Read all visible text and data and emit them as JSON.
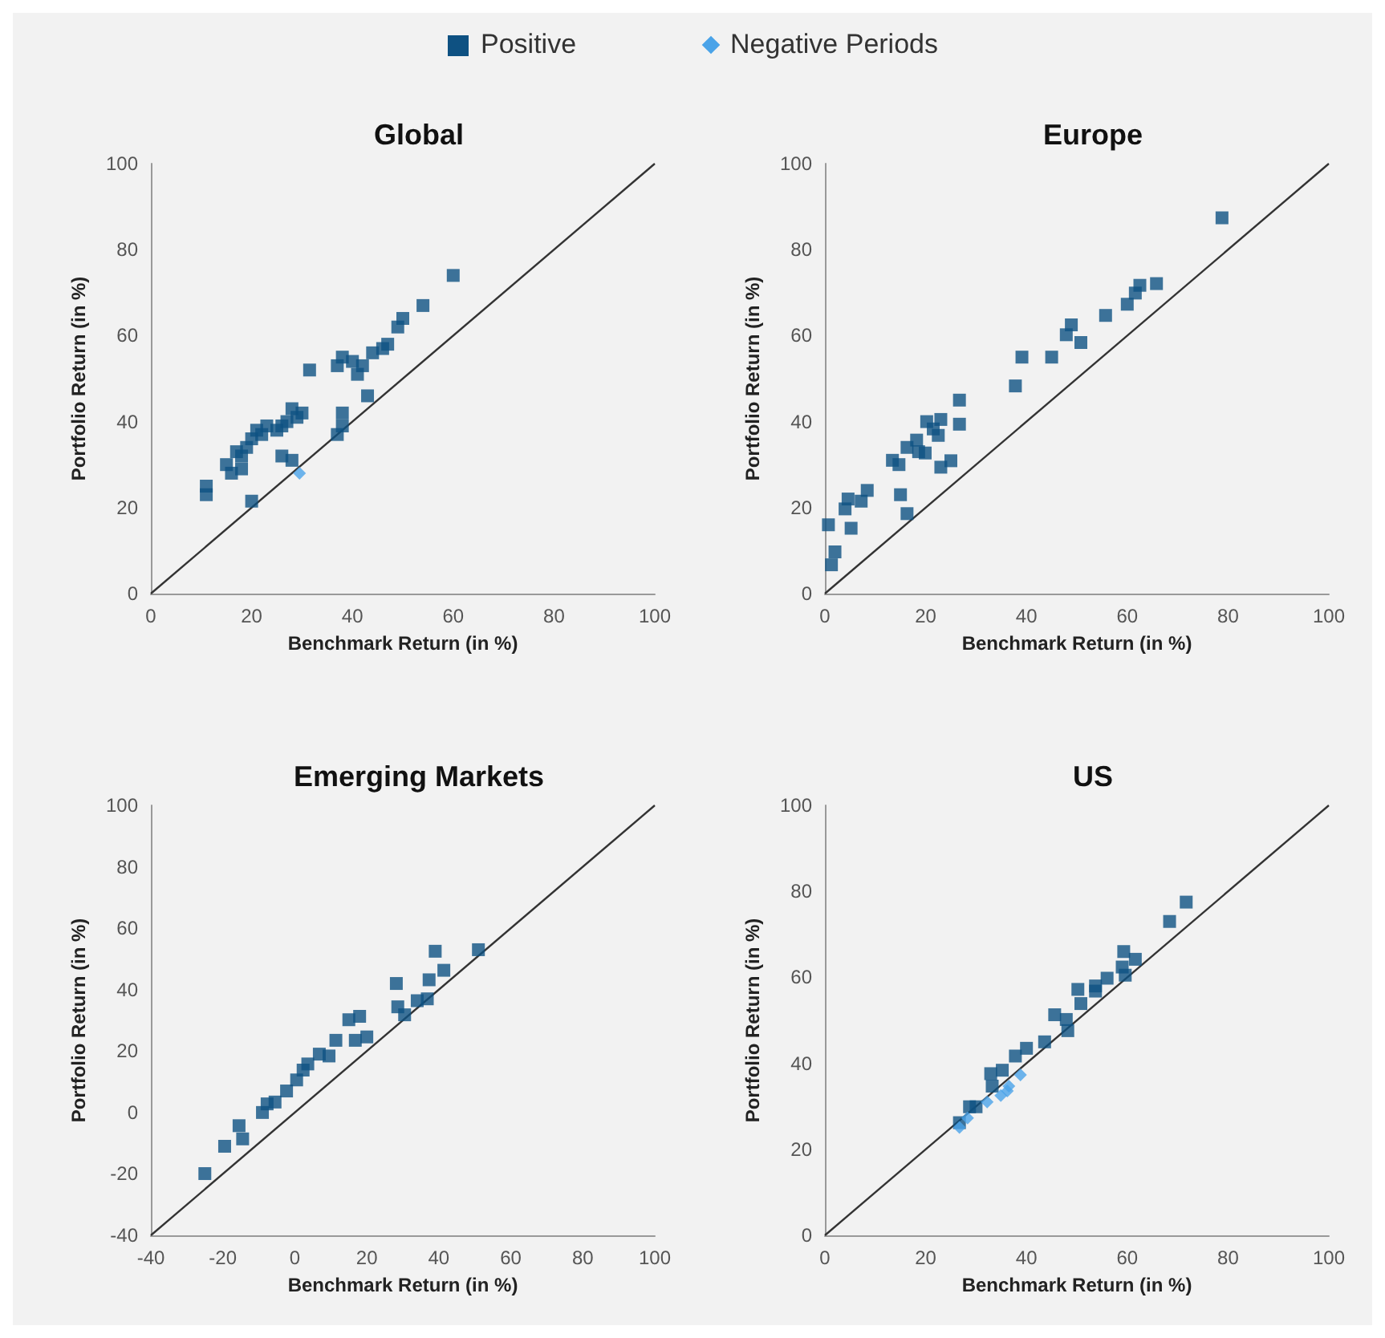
{
  "chart_data": [
    {
      "type": "scatter",
      "title": "Global",
      "xlabel": "Benchmark Return (in %)",
      "ylabel": "Portfolio Return (in %)",
      "legend": "top",
      "xlim": [
        0,
        100
      ],
      "ylim": [
        0,
        100
      ],
      "xticks": [
        0,
        20,
        40,
        60,
        80,
        100
      ],
      "yticks": [
        0,
        20,
        40,
        60,
        80,
        100
      ],
      "series": [
        {
          "name": "Positive",
          "color": "#0e5182",
          "marker": "square",
          "x": [
            11,
            11,
            20,
            15,
            17,
            18,
            19,
            20,
            21,
            22,
            23,
            25,
            26,
            27,
            28,
            29,
            30,
            26,
            28,
            31.5,
            37,
            38,
            38,
            37,
            38,
            40,
            41,
            42,
            43,
            44,
            46,
            47,
            49,
            50,
            54,
            60,
            16,
            18
          ],
          "values": [
            25,
            23,
            21.5,
            30,
            33,
            32,
            34,
            36,
            38,
            37,
            39,
            38,
            39,
            40,
            43,
            41,
            42,
            32,
            31,
            52,
            37,
            39,
            42,
            53,
            55,
            54,
            51,
            53,
            46,
            56,
            57,
            58,
            62,
            64,
            67,
            74,
            28,
            29
          ]
        },
        {
          "name": "Negative Periods",
          "color": "#4aa3e8",
          "marker": "diamond",
          "x": [
            29.5
          ],
          "values": [
            28
          ]
        },
        {
          "type": "line",
          "color": "#333333",
          "marker": "none",
          "x": [
            0,
            100
          ],
          "values": [
            0,
            100
          ]
        }
      ]
    },
    {
      "type": "scatter",
      "title": "Europe",
      "xlabel": "Benchmark Return (in %)",
      "ylabel": "Portfolio Return (in %)",
      "xlim": [
        0,
        100
      ],
      "ylim": [
        0,
        100
      ],
      "xticks": [
        0,
        20,
        40,
        60,
        80,
        100
      ],
      "yticks": [
        0,
        20,
        40,
        60,
        80,
        100
      ],
      "series": [
        {
          "name": "Positive",
          "color": "#0e5182",
          "marker": "square",
          "x": [
            0.7,
            1.3,
            2,
            4,
            4.6,
            7.2,
            8.4,
            5.2,
            13.4,
            14.7,
            15,
            16.3,
            16.3,
            18.2,
            18.6,
            20.2,
            21.5,
            23,
            22.5,
            23,
            25,
            26.7,
            26.7,
            19.9,
            37.8,
            39.1,
            45,
            47.9,
            48.9,
            50.8,
            55.7,
            60,
            61.6,
            62.5,
            65.8,
            78.8
          ],
          "values": [
            16,
            6.7,
            9.7,
            19.7,
            22,
            21.5,
            24,
            15.2,
            31,
            30,
            23,
            18.6,
            34,
            35.7,
            33,
            40,
            38.3,
            40.5,
            36.8,
            29.4,
            30.9,
            39.4,
            45,
            32.7,
            48.3,
            55,
            55,
            60.2,
            62.5,
            58.4,
            64.7,
            67.3,
            69.9,
            71.7,
            72.1,
            87.4
          ]
        },
        {
          "type": "line",
          "color": "#333333",
          "marker": "none",
          "x": [
            0,
            100
          ],
          "values": [
            0,
            100
          ]
        }
      ]
    },
    {
      "type": "scatter",
      "title": "Emerging Markets",
      "xlabel": "Benchmark Return (in %)",
      "ylabel": "Portfolio Return (in %)",
      "xlim": [
        -40,
        100
      ],
      "ylim": [
        -40,
        100
      ],
      "xticks": [
        -40,
        -20,
        0,
        20,
        40,
        60,
        80,
        100
      ],
      "yticks": [
        -40,
        -20,
        0,
        20,
        40,
        60,
        80,
        100
      ],
      "series": [
        {
          "name": "Positive",
          "color": "#0e5182",
          "marker": "square",
          "x": [
            -25,
            -19.5,
            -15.5,
            -14.5,
            -9,
            -7.7,
            -5.5,
            -2.3,
            0.5,
            2.3,
            3.6,
            6.8,
            9.5,
            11.4,
            15,
            18,
            16.8,
            20,
            28.2,
            28.6,
            30.5,
            34,
            36.8,
            37.3,
            41.4,
            39,
            51
          ],
          "values": [
            -19.9,
            -11,
            -4.3,
            -8.6,
            0,
            2.8,
            3.4,
            7,
            10.6,
            13.8,
            15.8,
            19,
            18.4,
            23.5,
            30.2,
            31.3,
            23.5,
            24.6,
            42,
            34.4,
            31.8,
            36.4,
            37,
            43.2,
            46.3,
            52.5,
            53
          ]
        },
        {
          "type": "line",
          "color": "#333333",
          "marker": "none",
          "x": [
            -40,
            100
          ],
          "values": [
            -40,
            100
          ]
        }
      ]
    },
    {
      "type": "scatter",
      "title": "US",
      "xlabel": "Benchmark Return (in %)",
      "ylabel": "Portfolio Return (in %)",
      "xlim": [
        0,
        100
      ],
      "ylim": [
        0,
        100
      ],
      "xticks": [
        0,
        20,
        40,
        60,
        80,
        100
      ],
      "yticks": [
        0,
        20,
        40,
        60,
        80,
        100
      ],
      "series": [
        {
          "name": "Positive",
          "color": "#0e5182",
          "marker": "square",
          "x": [
            71.7,
            68.4,
            59.3,
            61.6,
            59,
            59.6,
            56,
            53.7,
            53.7,
            50.2,
            50.8,
            45.6,
            47.9,
            48.2,
            43.6,
            40,
            37.8,
            35.2,
            32.9,
            33.2,
            30,
            28.7,
            26.7
          ],
          "values": [
            77.5,
            73,
            66,
            64.2,
            62.4,
            60.5,
            59.8,
            58,
            56.8,
            57.2,
            53.9,
            51.3,
            50.2,
            47.6,
            45,
            43.5,
            41.7,
            38.4,
            37.6,
            34.7,
            29.9,
            29.9,
            26.2
          ]
        },
        {
          "name": "Negative Periods",
          "color": "#4aa3e8",
          "marker": "diamond",
          "x": [
            36.2,
            34.9,
            36.5,
            38.8,
            32.2,
            28.3,
            26.7
          ],
          "values": [
            33.6,
            32.5,
            34.7,
            37.3,
            31,
            27.3,
            25.1
          ]
        },
        {
          "type": "line",
          "color": "#333333",
          "marker": "none",
          "x": [
            0,
            100
          ],
          "values": [
            0,
            100
          ]
        }
      ]
    }
  ]
}
